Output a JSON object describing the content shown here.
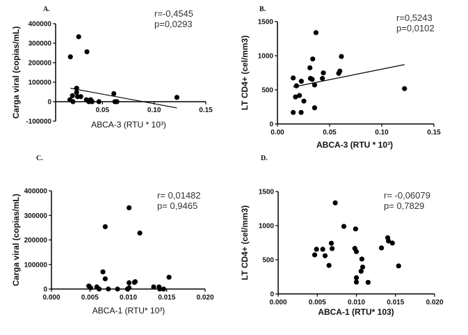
{
  "chart_data": [
    {
      "type": "scatter",
      "panel_label": "A.",
      "xlabel": "ABCA-3 (RTU * 10³)",
      "ylabel": "Carga viral (copias/mL)",
      "xlim": [
        0,
        0.15
      ],
      "ylim": [
        -100000,
        400000
      ],
      "xticks": [
        0.05,
        0.1,
        0.15
      ],
      "xtick_labels": [
        "0.05",
        "0.10",
        "0.15"
      ],
      "yticks": [
        -100000,
        0,
        100000,
        200000,
        300000,
        400000
      ],
      "ytick_labels": [
        "-100000",
        "0",
        "100000",
        "200000",
        "300000",
        "400000"
      ],
      "stats": [
        "r=-0,4545",
        "p=0,0293"
      ],
      "grid": false,
      "regression_line": [
        [
          0.019,
          69000
        ],
        [
          0.122,
          -32000
        ]
      ],
      "points": [
        [
          0.019,
          230000
        ],
        [
          0.027,
          333000
        ],
        [
          0.035,
          256000
        ],
        [
          0.0186,
          10000
        ],
        [
          0.0215,
          0
        ],
        [
          0.021,
          31000
        ],
        [
          0.025,
          69000
        ],
        [
          0.025,
          48000
        ],
        [
          0.026,
          26000
        ],
        [
          0.029,
          26000
        ],
        [
          0.0345,
          10000
        ],
        [
          0.0365,
          2000
        ],
        [
          0.0386,
          10000
        ],
        [
          0.04,
          0
        ],
        [
          0.037,
          0
        ],
        [
          0.0466,
          0
        ],
        [
          0.061,
          41000
        ],
        [
          0.062,
          0
        ],
        [
          0.064,
          0
        ],
        [
          0.122,
          22000
        ]
      ]
    },
    {
      "type": "scatter",
      "panel_label": "B.",
      "xlabel": "ABCA-3 (RTU * 10³)",
      "ylabel": "LT CD4+ (cel/mm3)",
      "xlim": [
        0,
        0.15
      ],
      "ylim": [
        0,
        1500
      ],
      "xticks": [
        0,
        0.05,
        0.1,
        0.15
      ],
      "xtick_labels": [
        "0.00",
        "0.05",
        "0.10",
        "0.15"
      ],
      "yticks": [
        0,
        500,
        1000,
        1500
      ],
      "ytick_labels": [
        "0",
        "500",
        "1000",
        "1500"
      ],
      "stats": [
        "r=0,5243",
        "p=0,0102"
      ],
      "grid": false,
      "regression_line": [
        [
          0.0151,
          542
        ],
        [
          0.1218,
          870
        ]
      ],
      "points": [
        [
          0.0151,
          674
        ],
        [
          0.0182,
          559
        ],
        [
          0.0173,
          396
        ],
        [
          0.0151,
          169
        ],
        [
          0.0211,
          417
        ],
        [
          0.0229,
          626
        ],
        [
          0.0227,
          169
        ],
        [
          0.0253,
          335
        ],
        [
          0.0311,
          823
        ],
        [
          0.0338,
          952
        ],
        [
          0.0369,
          1338
        ],
        [
          0.0316,
          667
        ],
        [
          0.0333,
          654
        ],
        [
          0.0356,
          572
        ],
        [
          0.0356,
          237
        ],
        [
          0.0431,
          667
        ],
        [
          0.044,
          748
        ],
        [
          0.0587,
          742
        ],
        [
          0.0598,
          775
        ],
        [
          0.0613,
          989
        ],
        [
          0.1218,
          518
        ]
      ]
    },
    {
      "type": "scatter",
      "panel_label": "C.",
      "xlabel": "ABCA-1 (RTU* 10³)",
      "ylabel": "Carga viral (copias/mL)",
      "xlim": [
        0,
        0.02
      ],
      "ylim": [
        0,
        400000
      ],
      "xticks": [
        0,
        0.005,
        0.01,
        0.015,
        0.02
      ],
      "xtick_labels": [
        "0.000",
        "0.005",
        "0.010",
        "0.015",
        "0.020"
      ],
      "yticks": [
        0,
        100000,
        200000,
        300000,
        400000
      ],
      "ytick_labels": [
        "0",
        "100000",
        "200000",
        "300000",
        "400000"
      ],
      "stats": [
        "r= 0,01482",
        "p= 0,9465"
      ],
      "grid": false,
      "points": [
        [
          0.00486,
          12300
        ],
        [
          0.0051,
          5000
        ],
        [
          0.0059,
          8500
        ],
        [
          0.0062,
          0
        ],
        [
          0.0067,
          70000
        ],
        [
          0.007,
          254000
        ],
        [
          0.007,
          41600
        ],
        [
          0.0074,
          0
        ],
        [
          0.0086,
          0
        ],
        [
          0.0101,
          331000
        ],
        [
          0.0101,
          25500
        ],
        [
          0.0099,
          0
        ],
        [
          0.0101,
          5000
        ],
        [
          0.0108,
          27000
        ],
        [
          0.0109,
          30000
        ],
        [
          0.0115,
          228000
        ],
        [
          0.0133,
          8500
        ],
        [
          0.014,
          8500
        ],
        [
          0.0141,
          0
        ],
        [
          0.0146,
          0
        ],
        [
          0.0153,
          48000
        ]
      ]
    },
    {
      "type": "scatter",
      "panel_label": "D.",
      "xlabel": "ABCA-1 (RTU* 103)",
      "ylabel": "LT CD4+ (cel/mm3)",
      "xlim": [
        0,
        0.02
      ],
      "ylim": [
        0,
        1500
      ],
      "xticks": [
        0,
        0.005,
        0.01,
        0.015,
        0.02
      ],
      "xtick_labels": [
        "0.000",
        "0.005",
        "0.010",
        "0.015",
        "0.020"
      ],
      "yticks": [
        0,
        500,
        1000,
        1500
      ],
      "ytick_labels": [
        "0",
        "500",
        "1000",
        "1500"
      ],
      "stats": [
        "r= -0,06079",
        "p= 0,7829"
      ],
      "grid": false,
      "points": [
        [
          0.00467,
          572
        ],
        [
          0.0049,
          654
        ],
        [
          0.0057,
          654
        ],
        [
          0.006,
          559
        ],
        [
          0.0065,
          417
        ],
        [
          0.0068,
          742
        ],
        [
          0.0069,
          664
        ],
        [
          0.0073,
          1334
        ],
        [
          0.0084,
          989
        ],
        [
          0.0098,
          667
        ],
        [
          0.0099,
          952
        ],
        [
          0.01,
          620
        ],
        [
          0.01,
          237
        ],
        [
          0.01,
          173
        ],
        [
          0.0107,
          511
        ],
        [
          0.0108,
          393
        ],
        [
          0.0106,
          332
        ],
        [
          0.0115,
          169
        ],
        [
          0.0132,
          674
        ],
        [
          0.014,
          823
        ],
        [
          0.0141,
          775
        ],
        [
          0.0146,
          745
        ],
        [
          0.0154,
          410
        ]
      ]
    }
  ]
}
